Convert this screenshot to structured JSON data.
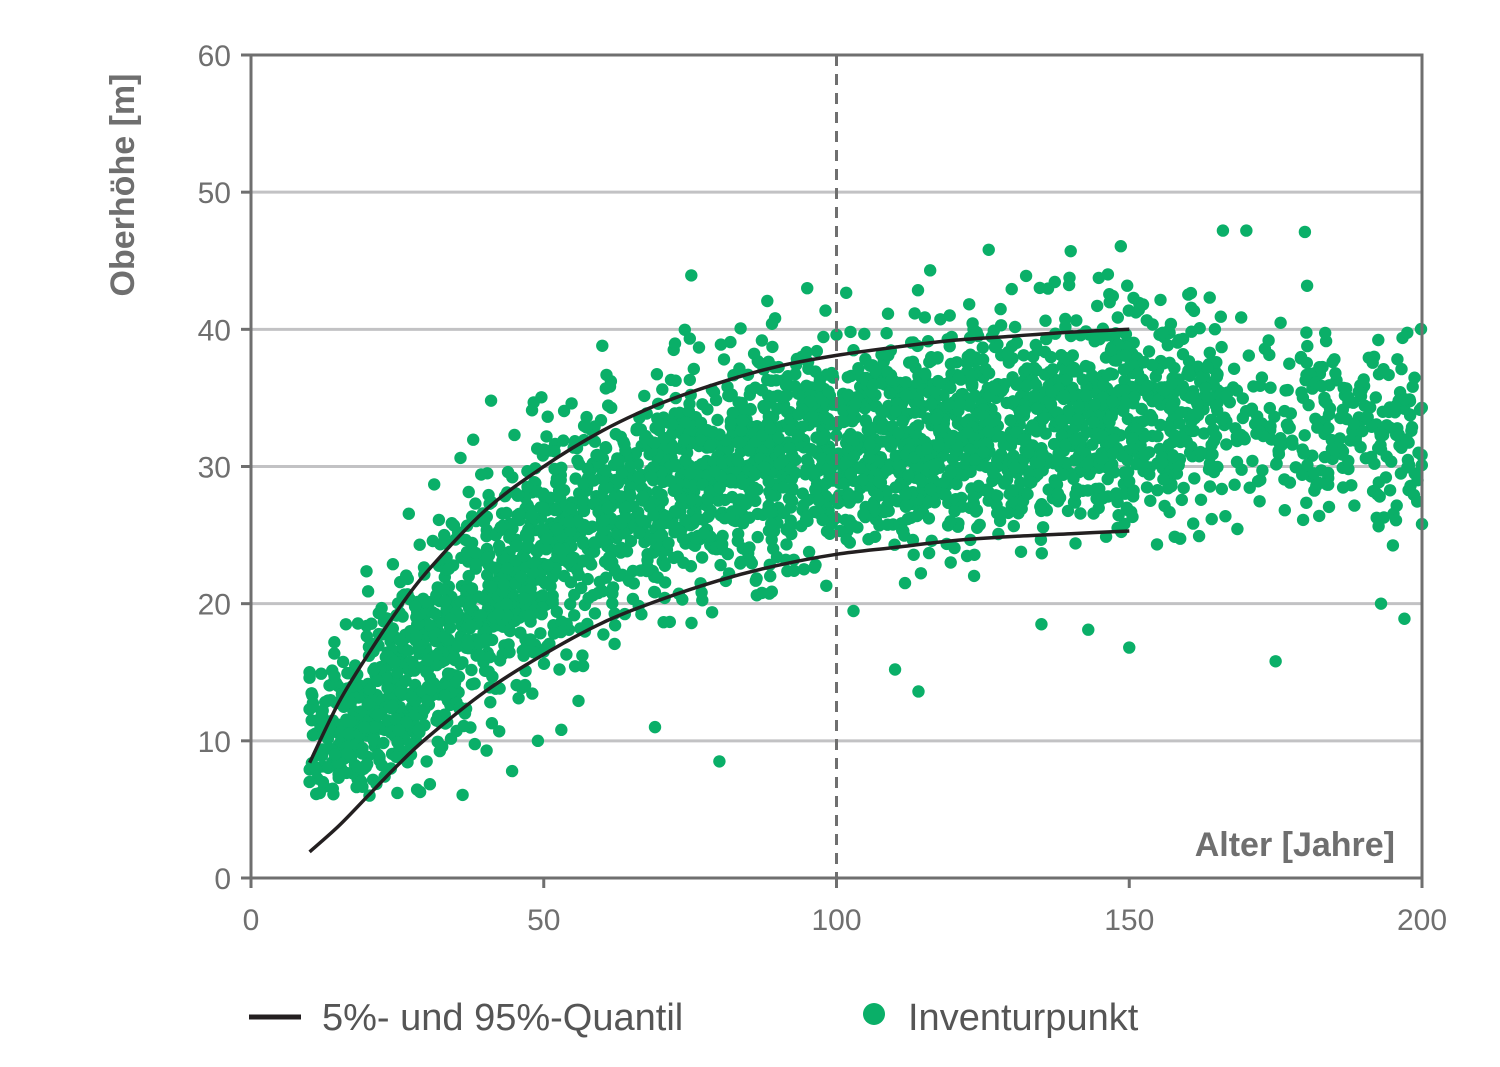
{
  "chart_data": {
    "type": "scatter",
    "xlabel": "Alter [Jahre]",
    "ylabel": "Oberhöhe [m]",
    "xlim": [
      0,
      200
    ],
    "ylim": [
      0,
      60
    ],
    "xticks": [
      "0",
      "50",
      "100",
      "150",
      "200"
    ],
    "yticks": [
      "0",
      "10",
      "20",
      "30",
      "40",
      "50",
      "60"
    ],
    "grid": "horizontal",
    "reference_line": {
      "x": 100,
      "style": "dashed"
    },
    "legend_placement": "bottom",
    "colors": {
      "points": "#0aaf68",
      "quantile_lines": "#231f20",
      "grid": "#c2c2c4",
      "axes": "#6f6f6f"
    },
    "series": [
      {
        "name": "5%- und 95%-Quantil",
        "kind": "line",
        "lines": [
          {
            "id": "q95",
            "x": [
              10,
              15,
              20,
              25,
              30,
              40,
              50,
              60,
              70,
              80,
              90,
              100,
              110,
              120,
              130,
              140,
              150
            ],
            "y": [
              8.4,
              12.8,
              16.3,
              19.5,
              22.3,
              26.8,
              30.0,
              32.6,
              34.6,
              36.1,
              37.3,
              38.1,
              38.7,
              39.2,
              39.5,
              39.8,
              40.0
            ]
          },
          {
            "id": "q05",
            "x": [
              10,
              15,
              20,
              25,
              30,
              40,
              50,
              60,
              70,
              80,
              90,
              100,
              110,
              120,
              130,
              140,
              150
            ],
            "y": [
              1.9,
              3.8,
              6.0,
              8.2,
              10.2,
              13.6,
              16.3,
              18.6,
              20.3,
              21.7,
              22.8,
              23.6,
              24.1,
              24.6,
              24.9,
              25.1,
              25.3
            ]
          }
        ]
      },
      {
        "name": "Inventurpunkt",
        "kind": "scatter",
        "approx_points": 3500,
        "envelope": {
          "x": [
            10,
            20,
            30,
            40,
            50,
            60,
            80,
            100,
            120,
            140,
            160,
            180,
            200
          ],
          "center": [
            10,
            12,
            16,
            20,
            24,
            26.5,
            29.5,
            31.5,
            32.5,
            33.5,
            34,
            33,
            32
          ],
          "spread": [
            2.5,
            3.5,
            4,
            4.5,
            4.5,
            4.5,
            4.2,
            4,
            4,
            4,
            3.8,
            3.8,
            4
          ]
        },
        "outliers": [
          [
            10,
            15.0
          ],
          [
            10,
            14.6
          ],
          [
            10,
            12.3
          ],
          [
            10,
            7.0
          ],
          [
            20,
            20.9
          ],
          [
            25,
            6.2
          ],
          [
            30,
            8.5
          ],
          [
            33,
            25.0
          ],
          [
            41,
            34.8
          ],
          [
            45,
            32.3
          ],
          [
            48,
            34.1
          ],
          [
            49,
            10.0
          ],
          [
            53,
            10.8
          ],
          [
            60,
            38.8
          ],
          [
            69,
            11.0
          ],
          [
            80,
            8.5
          ],
          [
            95,
            43.0
          ],
          [
            110,
            15.2
          ],
          [
            114,
            13.6
          ],
          [
            116,
            44.3
          ],
          [
            126,
            45.8
          ],
          [
            135,
            18.5
          ],
          [
            140,
            45.7
          ],
          [
            143,
            18.1
          ],
          [
            150,
            16.8
          ],
          [
            166,
            47.2
          ],
          [
            170,
            47.2
          ],
          [
            175,
            15.8
          ],
          [
            180,
            47.1
          ],
          [
            193,
            20.0
          ],
          [
            197,
            18.9
          ],
          [
            200,
            25.8
          ]
        ]
      }
    ]
  }
}
